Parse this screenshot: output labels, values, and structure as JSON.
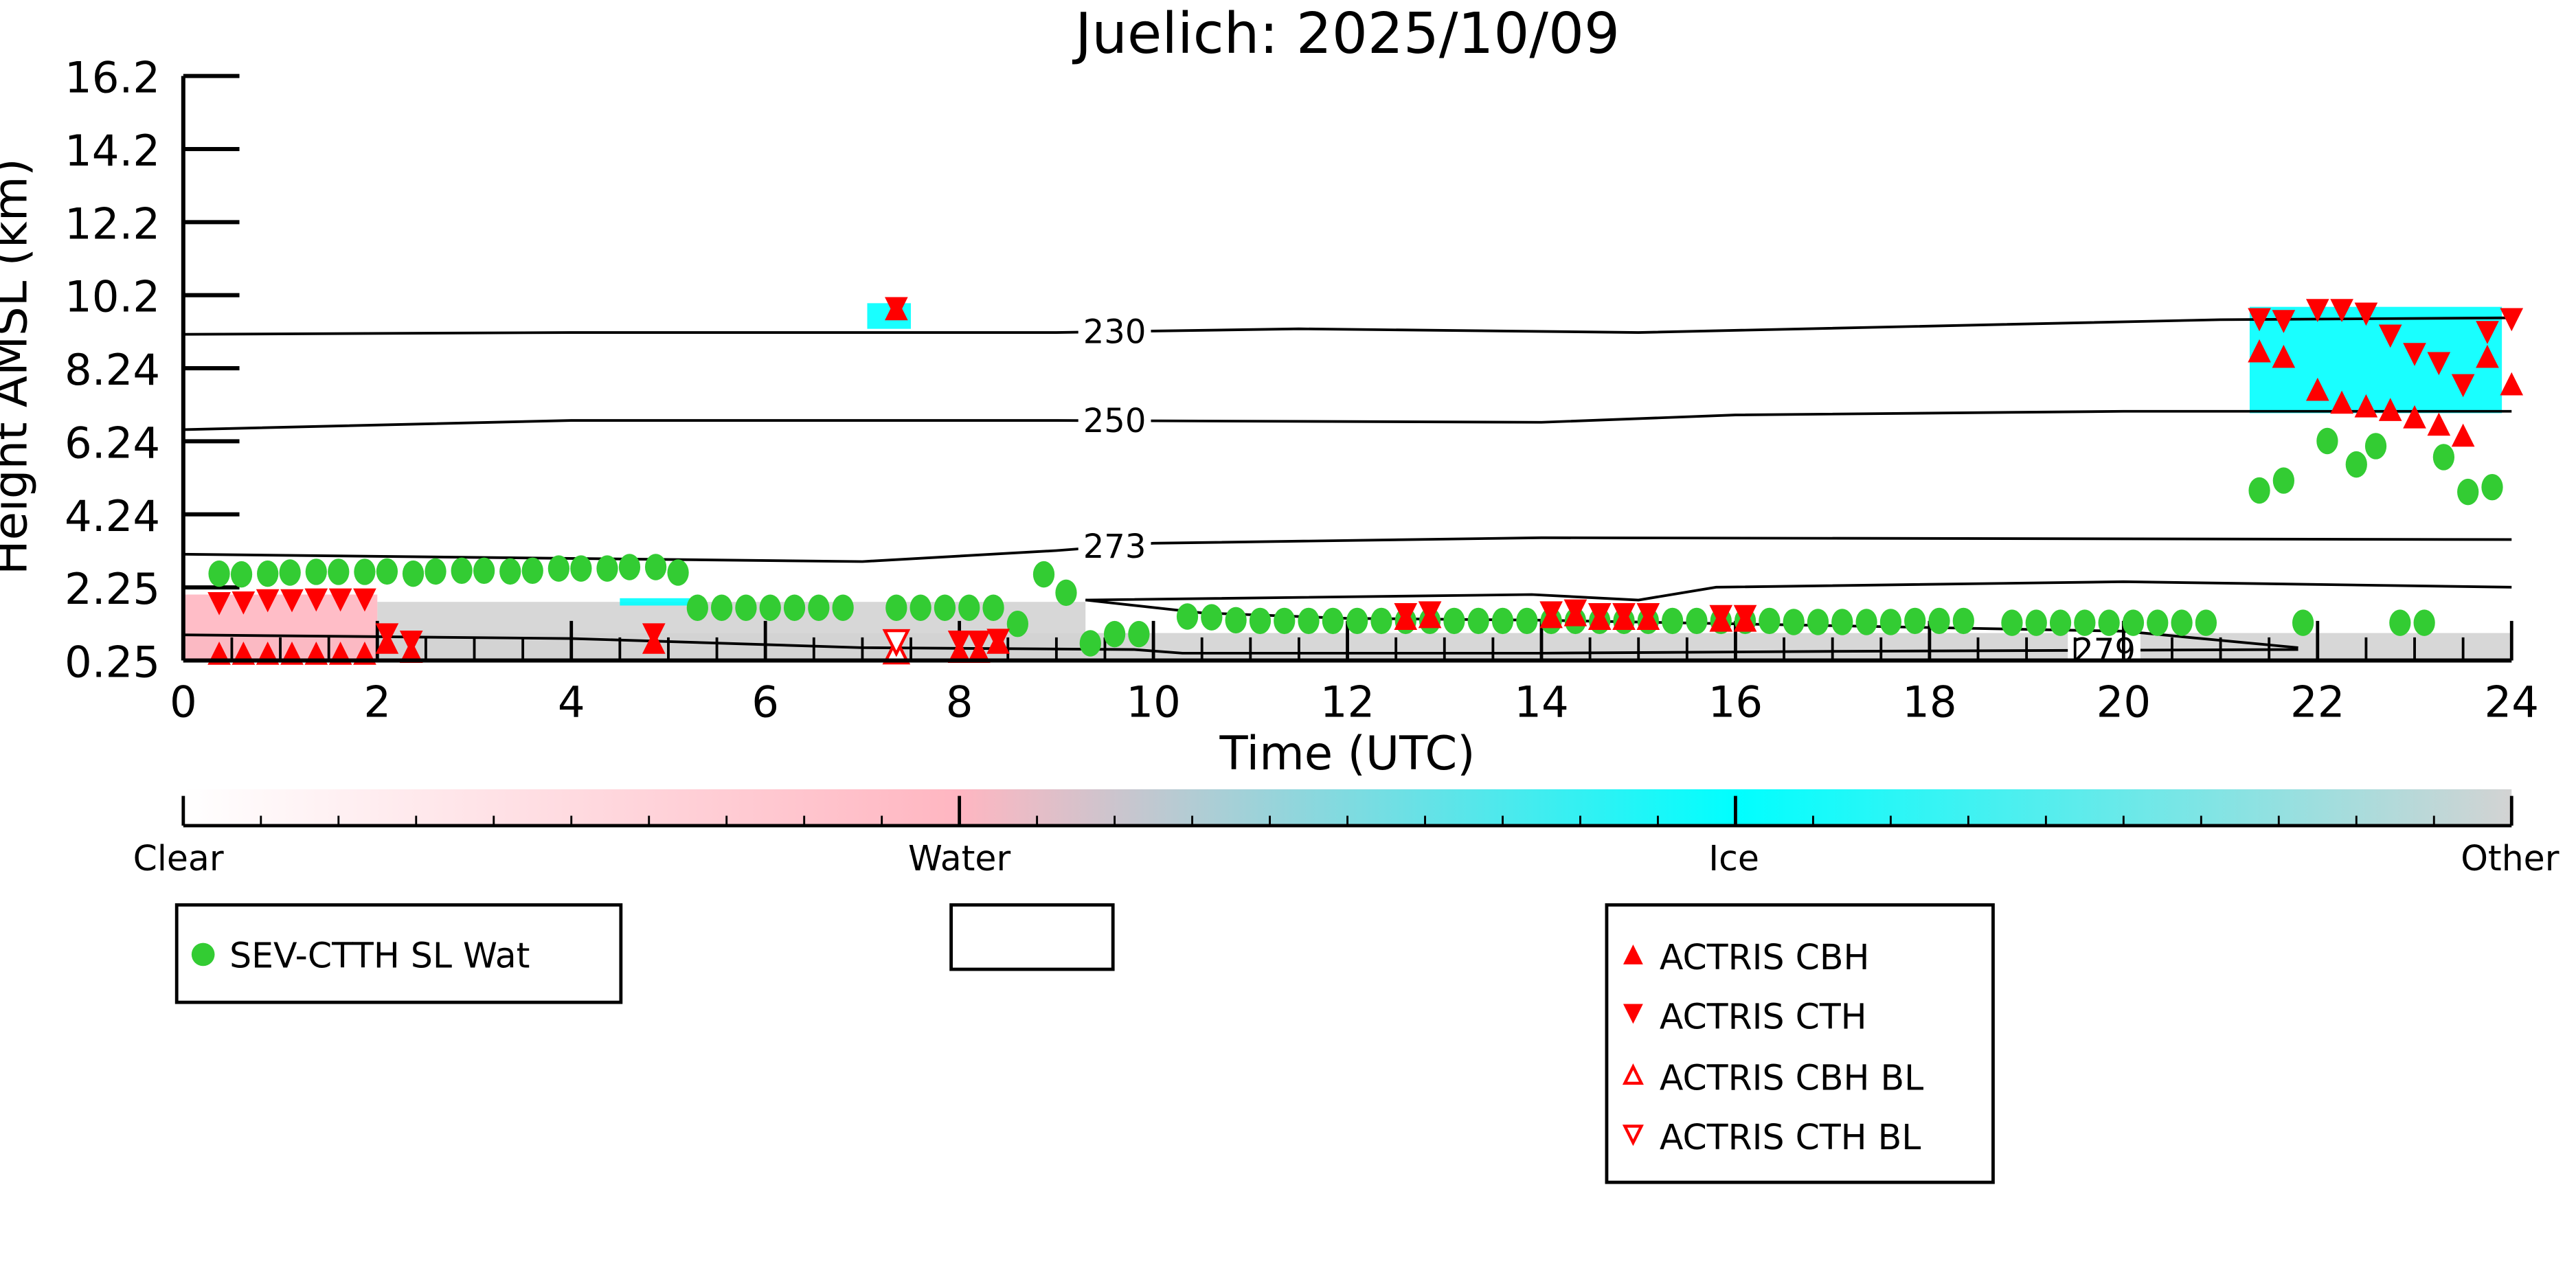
{
  "chart_data": {
    "type": "scatter",
    "title": "Juelich: 2025/10/09",
    "xlabel": "Time (UTC)",
    "ylabel": "Height AMSL (km)",
    "xlim": [
      0,
      24
    ],
    "ylim": [
      0.25,
      16.2
    ],
    "xticks": [
      "0",
      "2",
      "4",
      "6",
      "8",
      "10",
      "12",
      "14",
      "16",
      "18",
      "20",
      "22",
      "24"
    ],
    "yticks": [
      "16.2",
      "14.2",
      "12.2",
      "10.2",
      "8.24",
      "6.24",
      "4.24",
      "2.25",
      "0.25"
    ],
    "colorbar": {
      "labels": [
        "Clear",
        "Water",
        "Ice",
        "Other"
      ],
      "colors": [
        "#ffffff",
        "#ffb6c1",
        "#00ffff",
        "#d3d3d3"
      ]
    },
    "contours": [
      {
        "label": "230",
        "label_x": 9.6,
        "points": [
          [
            0,
            9.15
          ],
          [
            4,
            9.2
          ],
          [
            9,
            9.2
          ],
          [
            11.5,
            9.3
          ],
          [
            15,
            9.2
          ],
          [
            21,
            9.55
          ],
          [
            24,
            9.6
          ]
        ]
      },
      {
        "label": "250",
        "label_x": 9.6,
        "points": [
          [
            0,
            6.55
          ],
          [
            4,
            6.8
          ],
          [
            9,
            6.8
          ],
          [
            14,
            6.75
          ],
          [
            16,
            6.95
          ],
          [
            20,
            7.05
          ],
          [
            24,
            7.05
          ]
        ]
      },
      {
        "label": "273",
        "label_x": 9.6,
        "points": [
          [
            0,
            3.15
          ],
          [
            7,
            2.95
          ],
          [
            9,
            3.25
          ],
          [
            10,
            3.45
          ],
          [
            14,
            3.6
          ],
          [
            24,
            3.55
          ]
        ]
      },
      {
        "label": "",
        "label_x": null,
        "points": [
          [
            9.3,
            1.9
          ],
          [
            13.9,
            2.05
          ],
          [
            15,
            1.9
          ],
          [
            15.8,
            2.25
          ],
          [
            20,
            2.4
          ],
          [
            24,
            2.25
          ]
        ]
      },
      {
        "label": "279",
        "label_x": 19.8,
        "points": [
          [
            0,
            0.95
          ],
          [
            4,
            0.85
          ],
          [
            7,
            0.6
          ],
          [
            9.8,
            0.55
          ],
          [
            10.3,
            0.45
          ],
          [
            14,
            0.45
          ],
          [
            17,
            0.5
          ],
          [
            21.8,
            0.55
          ]
        ]
      },
      {
        "label": "",
        "label_x": null,
        "points": [
          [
            9.3,
            1.9
          ],
          [
            10.5,
            1.55
          ],
          [
            12,
            1.4
          ],
          [
            14,
            1.35
          ],
          [
            17,
            1.2
          ],
          [
            20,
            1.05
          ],
          [
            21.8,
            0.6
          ]
        ]
      }
    ],
    "series": [
      {
        "name": "SEV-CTTH SL Wat",
        "color": "#33cc33",
        "marker": "circle",
        "points": [
          [
            0.37,
            2.62
          ],
          [
            0.6,
            2.6
          ],
          [
            0.87,
            2.62
          ],
          [
            1.1,
            2.65
          ],
          [
            1.37,
            2.67
          ],
          [
            1.6,
            2.67
          ],
          [
            1.87,
            2.67
          ],
          [
            2.1,
            2.68
          ],
          [
            2.37,
            2.62
          ],
          [
            2.6,
            2.68
          ],
          [
            2.87,
            2.7
          ],
          [
            3.1,
            2.7
          ],
          [
            3.37,
            2.68
          ],
          [
            3.6,
            2.7
          ],
          [
            3.87,
            2.76
          ],
          [
            4.1,
            2.76
          ],
          [
            4.37,
            2.76
          ],
          [
            4.6,
            2.8
          ],
          [
            4.87,
            2.8
          ],
          [
            5.1,
            2.65
          ],
          [
            5.3,
            1.69
          ],
          [
            5.55,
            1.69
          ],
          [
            5.8,
            1.69
          ],
          [
            6.05,
            1.69
          ],
          [
            6.3,
            1.69
          ],
          [
            6.55,
            1.69
          ],
          [
            6.8,
            1.69
          ],
          [
            7.35,
            1.69
          ],
          [
            7.6,
            1.69
          ],
          [
            7.85,
            1.69
          ],
          [
            8.1,
            1.69
          ],
          [
            8.35,
            1.69
          ],
          [
            8.6,
            1.25
          ],
          [
            8.87,
            2.6
          ],
          [
            9.1,
            2.1
          ],
          [
            9.35,
            0.72
          ],
          [
            9.6,
            0.97
          ],
          [
            9.85,
            0.97
          ],
          [
            10.35,
            1.45
          ],
          [
            10.6,
            1.43
          ],
          [
            10.85,
            1.35
          ],
          [
            11.1,
            1.33
          ],
          [
            11.35,
            1.33
          ],
          [
            11.6,
            1.33
          ],
          [
            11.85,
            1.33
          ],
          [
            12.1,
            1.33
          ],
          [
            12.35,
            1.33
          ],
          [
            12.6,
            1.33
          ],
          [
            12.85,
            1.33
          ],
          [
            13.1,
            1.33
          ],
          [
            13.35,
            1.33
          ],
          [
            13.6,
            1.33
          ],
          [
            13.85,
            1.33
          ],
          [
            14.1,
            1.33
          ],
          [
            14.35,
            1.33
          ],
          [
            14.6,
            1.33
          ],
          [
            14.85,
            1.33
          ],
          [
            15.1,
            1.33
          ],
          [
            15.35,
            1.33
          ],
          [
            15.6,
            1.33
          ],
          [
            15.85,
            1.33
          ],
          [
            16.1,
            1.33
          ],
          [
            16.35,
            1.33
          ],
          [
            16.6,
            1.3
          ],
          [
            16.85,
            1.3
          ],
          [
            17.1,
            1.3
          ],
          [
            17.35,
            1.3
          ],
          [
            17.6,
            1.3
          ],
          [
            17.85,
            1.33
          ],
          [
            18.1,
            1.33
          ],
          [
            18.35,
            1.33
          ],
          [
            18.85,
            1.28
          ],
          [
            19.1,
            1.28
          ],
          [
            19.35,
            1.28
          ],
          [
            19.6,
            1.28
          ],
          [
            19.85,
            1.28
          ],
          [
            20.1,
            1.28
          ],
          [
            20.35,
            1.28
          ],
          [
            20.6,
            1.28
          ],
          [
            20.85,
            1.28
          ],
          [
            21.85,
            1.28
          ],
          [
            22.85,
            1.28
          ],
          [
            23.1,
            1.28
          ],
          [
            21.4,
            4.89
          ],
          [
            21.65,
            5.16
          ],
          [
            22.1,
            6.24
          ],
          [
            22.4,
            5.6
          ],
          [
            22.6,
            6.1
          ],
          [
            23.3,
            5.8
          ],
          [
            23.55,
            4.85
          ],
          [
            23.8,
            4.98
          ]
        ]
      },
      {
        "name": "ACTRIS CBH",
        "color": "#ff0000",
        "marker": "triangle-up",
        "points": [
          [
            0.37,
            0.45
          ],
          [
            0.62,
            0.45
          ],
          [
            0.87,
            0.45
          ],
          [
            1.12,
            0.45
          ],
          [
            1.37,
            0.45
          ],
          [
            1.62,
            0.45
          ],
          [
            1.87,
            0.45
          ],
          [
            2.1,
            0.75
          ],
          [
            2.35,
            0.5
          ],
          [
            4.85,
            0.75
          ],
          [
            7.35,
            9.85
          ],
          [
            8.0,
            0.5
          ],
          [
            8.2,
            0.5
          ],
          [
            8.4,
            0.75
          ],
          [
            12.6,
            1.4
          ],
          [
            12.85,
            1.45
          ],
          [
            14.1,
            1.45
          ],
          [
            14.35,
            1.5
          ],
          [
            14.6,
            1.4
          ],
          [
            14.85,
            1.4
          ],
          [
            15.1,
            1.4
          ],
          [
            15.85,
            1.35
          ],
          [
            16.1,
            1.35
          ],
          [
            21.4,
            8.7
          ],
          [
            21.65,
            8.55
          ],
          [
            22.0,
            7.65
          ],
          [
            22.25,
            7.3
          ],
          [
            22.5,
            7.2
          ],
          [
            22.75,
            7.1
          ],
          [
            23.0,
            6.9
          ],
          [
            23.25,
            6.7
          ],
          [
            23.5,
            6.4
          ],
          [
            23.75,
            8.55
          ],
          [
            24.0,
            7.8
          ]
        ]
      },
      {
        "name": "ACTRIS CTH",
        "color": "#ff0000",
        "marker": "triangle-down",
        "points": [
          [
            0.37,
            1.8
          ],
          [
            0.62,
            1.82
          ],
          [
            0.87,
            1.88
          ],
          [
            1.12,
            1.88
          ],
          [
            1.37,
            1.9
          ],
          [
            1.62,
            1.9
          ],
          [
            1.87,
            1.9
          ],
          [
            2.1,
            0.95
          ],
          [
            2.35,
            0.75
          ],
          [
            4.85,
            0.95
          ],
          [
            7.35,
            9.85
          ],
          [
            8.0,
            0.75
          ],
          [
            8.2,
            0.75
          ],
          [
            8.4,
            0.8
          ],
          [
            12.6,
            1.5
          ],
          [
            12.85,
            1.55
          ],
          [
            14.1,
            1.55
          ],
          [
            14.35,
            1.6
          ],
          [
            14.6,
            1.5
          ],
          [
            14.85,
            1.5
          ],
          [
            15.1,
            1.5
          ],
          [
            15.85,
            1.45
          ],
          [
            16.1,
            1.45
          ],
          [
            21.4,
            9.55
          ],
          [
            21.65,
            9.5
          ],
          [
            22.0,
            9.8
          ],
          [
            22.25,
            9.8
          ],
          [
            22.5,
            9.7
          ],
          [
            22.75,
            9.1
          ],
          [
            23.0,
            8.6
          ],
          [
            23.25,
            8.35
          ],
          [
            23.5,
            7.75
          ],
          [
            23.75,
            9.2
          ],
          [
            24.0,
            9.55
          ]
        ]
      },
      {
        "name": "ACTRIS CBH BL",
        "color": "#ff0000",
        "marker": "triangle-up-open",
        "points": [
          [
            7.35,
            0.5
          ]
        ]
      },
      {
        "name": "ACTRIS CTH BL",
        "color": "#ff0000",
        "marker": "triangle-down-open",
        "points": [
          [
            7.35,
            0.75
          ]
        ]
      }
    ],
    "cloud_regions": [
      {
        "phase": "Other",
        "color": "#d3d3d3",
        "t": [
          0,
          24
        ],
        "h": [
          0.25,
          1.0
        ]
      },
      {
        "phase": "Other",
        "color": "#d3d3d3",
        "t": [
          2,
          9.3
        ],
        "h": [
          0.25,
          1.85
        ]
      },
      {
        "phase": "Water",
        "color": "#ffb6c1",
        "t": [
          0,
          2
        ],
        "h": [
          0.25,
          2.05
        ]
      },
      {
        "phase": "Ice",
        "color": "#00ffff",
        "t": [
          4.5,
          5.3
        ],
        "h": [
          1.75,
          1.95
        ]
      },
      {
        "phase": "Ice",
        "color": "#00ffff",
        "t": [
          7.05,
          7.5
        ],
        "h": [
          9.3,
          10.0
        ]
      },
      {
        "phase": "Ice",
        "color": "#00ffff",
        "t": [
          21.3,
          23.9
        ],
        "h": [
          7.0,
          9.9
        ]
      }
    ],
    "legends": [
      {
        "entries": [
          "SEV-CTTH SL Wat"
        ]
      },
      {
        "entries": []
      },
      {
        "entries": [
          "ACTRIS CBH",
          "ACTRIS CTH",
          "ACTRIS CBH BL",
          "ACTRIS CTH BL"
        ]
      }
    ]
  }
}
